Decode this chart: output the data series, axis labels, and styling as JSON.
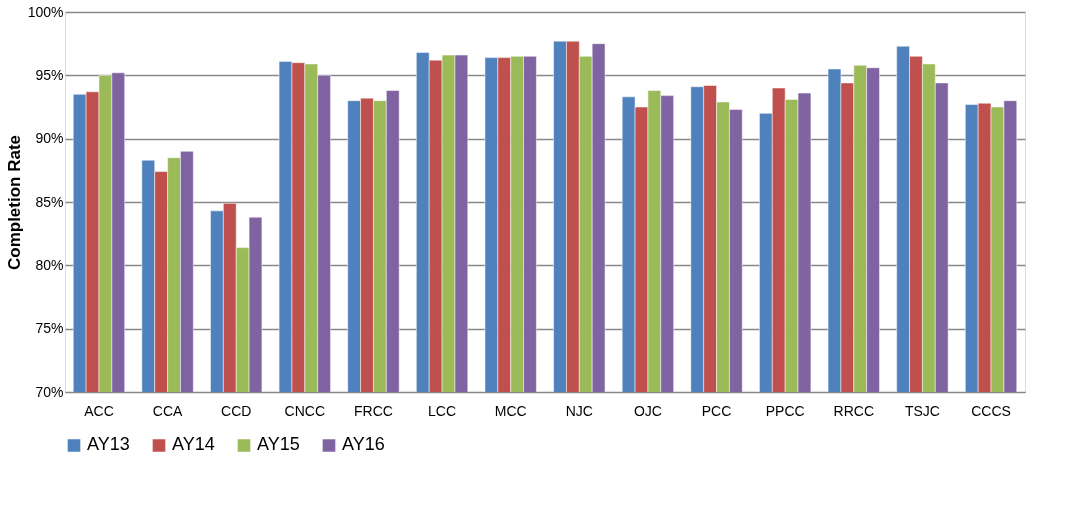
{
  "chart_data": {
    "type": "bar",
    "ylabel": "Completion Rate",
    "categories": [
      "ACC",
      "CCA",
      "CCD",
      "CNCC",
      "FRCC",
      "LCC",
      "MCC",
      "NJC",
      "OJC",
      "PCC",
      "PPCC",
      "RRCC",
      "TSJC",
      "CCCS"
    ],
    "series": [
      {
        "name": "AY13",
        "color": "#4f81bd",
        "values": [
          93.5,
          88.3,
          84.3,
          96.1,
          93.0,
          96.8,
          96.4,
          97.7,
          93.3,
          94.1,
          92.0,
          95.5,
          97.3,
          92.7
        ]
      },
      {
        "name": "AY14",
        "color": "#c0504d",
        "values": [
          93.7,
          87.4,
          84.9,
          96.0,
          93.2,
          96.2,
          96.4,
          97.7,
          92.5,
          94.2,
          94.0,
          94.4,
          96.5,
          92.8
        ]
      },
      {
        "name": "AY15",
        "color": "#9bbb59",
        "values": [
          95.0,
          88.5,
          81.4,
          95.9,
          93.0,
          96.6,
          96.5,
          96.5,
          93.8,
          92.9,
          93.1,
          95.8,
          95.9,
          92.5
        ]
      },
      {
        "name": "AY16",
        "color": "#8064a2",
        "values": [
          95.2,
          89.0,
          83.8,
          95.0,
          93.8,
          96.6,
          96.5,
          97.5,
          93.4,
          92.3,
          93.6,
          95.6,
          94.4,
          93.0
        ]
      }
    ],
    "ylim": [
      70,
      100
    ],
    "yticks": [
      {
        "value": 70,
        "label": "70%"
      },
      {
        "value": 75,
        "label": "75%"
      },
      {
        "value": 80,
        "label": "80%"
      },
      {
        "value": 85,
        "label": "85%"
      },
      {
        "value": 90,
        "label": "90%"
      },
      {
        "value": 95,
        "label": "95%"
      },
      {
        "value": 100,
        "label": "100%"
      }
    ],
    "grid": "y",
    "legend": "bottom"
  }
}
